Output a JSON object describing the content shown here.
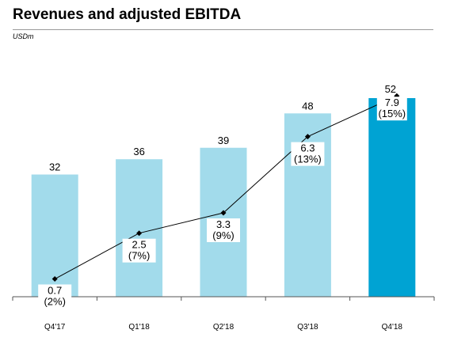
{
  "header": {
    "title": "Revenues and adjusted EBITDA",
    "unit": "USDm"
  },
  "colors": {
    "bar": "#a2dbeb",
    "bar_highlight": "#00a3d3",
    "line": "#000000",
    "axis": "#555555"
  },
  "chart_data": {
    "type": "bar",
    "title": "Revenues and adjusted EBITDA",
    "ylabel": "USDm",
    "categories": [
      "Q4'17",
      "Q1'18",
      "Q2'18",
      "Q3'18",
      "Q4'18"
    ],
    "series": [
      {
        "values": [
          32,
          36,
          39,
          48,
          52
        ],
        "labels": [
          "32",
          "36",
          "39",
          "48",
          "52"
        ]
      },
      {
        "type": "line",
        "values": [
          0.7,
          2.5,
          3.3,
          6.3,
          7.9
        ],
        "labels": [
          "0.7",
          "2.5",
          "3.3",
          "6.3",
          "7.9"
        ],
        "margin_labels": [
          "(2%)",
          "(7%)",
          "(9%)",
          "(13%)",
          "(15%)"
        ]
      }
    ],
    "ylim": [
      0,
      58
    ],
    "grid": false,
    "legend": "none"
  }
}
